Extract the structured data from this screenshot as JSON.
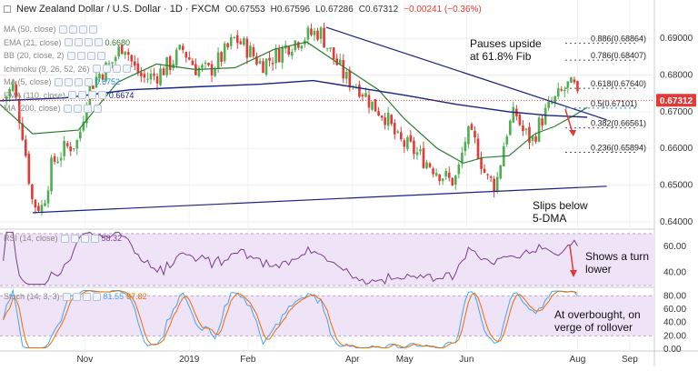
{
  "header": {
    "title": "New Zealand Dollar / U.S. Dollar · 1D · FXCM",
    "open": "O0.67553",
    "high": "H0.67596",
    "low": "L0.67286",
    "close": "C0.67312",
    "change": "−0.00241 (−0.36%)"
  },
  "indicators": [
    {
      "label": "MA (50, close)",
      "value": "",
      "color": "#8c8c8c"
    },
    {
      "label": "EMA (21, close)",
      "value": "0.6680",
      "color": "#2e7d32"
    },
    {
      "label": "BB (20, close, 2)",
      "value": "",
      "color": "#8c8c8c"
    },
    {
      "label": "Ichimoku (9, 26, 52, 26)",
      "value": "",
      "color": "#8c8c8c"
    },
    {
      "label": "MA (5, close)",
      "value": "0.6752",
      "color": "#1e88e5"
    },
    {
      "label": "EMA (110, close)",
      "value": "0.6674",
      "color": "#1a237e"
    },
    {
      "label": "MA (200, close)",
      "value": "",
      "color": "#8c8c8c"
    }
  ],
  "price_badge": "0.67312",
  "annotations": {
    "fib_note": [
      "Pauses upside",
      "at 61.8% Fib"
    ],
    "dma_note": [
      "Slips below",
      "5-DMA"
    ],
    "rsi_note": [
      "Shows a turn",
      "lower"
    ],
    "stoch_note": [
      "At overbought, on",
      "verge of rollover"
    ]
  },
  "rsi_legend": {
    "label": "RSI (14, close)",
    "value": "58.32"
  },
  "stoch_legend": {
    "label": "Stoch (14, 3, 3)",
    "k": "81.55",
    "d": "87.82"
  },
  "colors": {
    "up": "#4caf50",
    "down": "#e53935",
    "ema21": "#2e7d32",
    "ema110": "#1a237e",
    "trendline": "#1a237e",
    "rsi": "#7b3f8c",
    "stoch_k": "#42a5f5",
    "stoch_d": "#ef6c00",
    "band": "#efe3f7",
    "badge": "#e53935",
    "arrow": "#e53935"
  },
  "chart_data": [
    {
      "type": "candlestick",
      "xlabel": "",
      "ylabel": "",
      "ylim": [
        0.6385,
        0.6955
      ],
      "x_ticks": [
        "Nov",
        "2019",
        "Feb",
        "Apr",
        "May",
        "Jun",
        "Aug",
        "Sep"
      ],
      "y_ticks": [
        0.64,
        0.65,
        0.66,
        0.67,
        0.68,
        0.69
      ],
      "series": [
        {
          "name": "EMA (21, close)",
          "key_points": [
            [
              0.0,
              0.672
            ],
            [
              0.05,
              0.664
            ],
            [
              0.12,
              0.665
            ],
            [
              0.18,
              0.678
            ],
            [
              0.24,
              0.683
            ],
            [
              0.3,
              0.6815
            ],
            [
              0.36,
              0.682
            ],
            [
              0.42,
              0.687
            ],
            [
              0.47,
              0.689
            ],
            [
              0.52,
              0.683
            ],
            [
              0.58,
              0.676
            ],
            [
              0.62,
              0.668
            ],
            [
              0.67,
              0.66
            ],
            [
              0.71,
              0.656
            ],
            [
              0.74,
              0.6575
            ],
            [
              0.78,
              0.658
            ],
            [
              0.82,
              0.664
            ],
            [
              0.85,
              0.666
            ],
            [
              0.88,
              0.669
            ],
            [
              0.9,
              0.6712
            ]
          ]
        },
        {
          "name": "EMA (110, close)",
          "key_points": [
            [
              0.0,
              0.673
            ],
            [
              0.1,
              0.6738
            ],
            [
              0.2,
              0.676
            ],
            [
              0.3,
              0.6768
            ],
            [
              0.4,
              0.6775
            ],
            [
              0.48,
              0.6785
            ],
            [
              0.55,
              0.6765
            ],
            [
              0.62,
              0.6745
            ],
            [
              0.7,
              0.672
            ],
            [
              0.78,
              0.67
            ],
            [
              0.84,
              0.669
            ],
            [
              0.9,
              0.6685
            ]
          ]
        },
        {
          "name": "Upper trendline",
          "key_points": [
            [
              0.5,
              0.693
            ],
            [
              0.93,
              0.6678
            ]
          ]
        },
        {
          "name": "Lower trendline",
          "key_points": [
            [
              0.05,
              0.6425
            ],
            [
              0.93,
              0.6497
            ]
          ]
        }
      ],
      "fib_levels": [
        {
          "label": "0.886(0.68864)",
          "value": 0.68864
        },
        {
          "label": "0.786(0.68407)",
          "value": 0.68407
        },
        {
          "label": "0.618(0.67640)",
          "value": 0.6764
        },
        {
          "label": "0.5(0.67101)",
          "value": 0.67101
        },
        {
          "label": "0.382(0.66561)",
          "value": 0.66561
        },
        {
          "label": "0.236(0.65894)",
          "value": 0.65894
        }
      ],
      "last_price": 0.67312
    },
    {
      "type": "line",
      "name": "RSI (14, close)",
      "ylim": [
        30,
        72
      ],
      "y_ticks": [
        40,
        60
      ],
      "band": [
        30,
        70
      ],
      "last_value": 58.32
    },
    {
      "type": "line",
      "name": "Stoch (14, 3, 3)",
      "ylim": [
        0,
        90
      ],
      "y_ticks": [
        0,
        20,
        40,
        60,
        80
      ],
      "band": [
        20,
        80
      ],
      "last_k": 81.55,
      "last_d": 87.82
    }
  ]
}
